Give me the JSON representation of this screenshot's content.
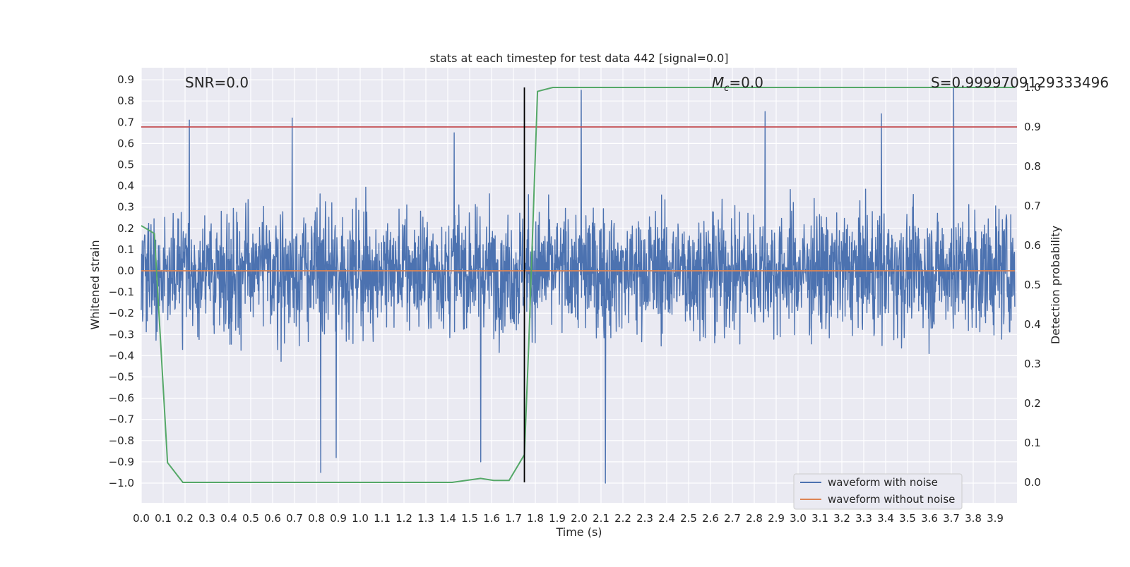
{
  "chart_data": {
    "type": "line",
    "title": "stats at each timestep for test data 442 [signal=0.0]",
    "xlabel": "Time (s)",
    "ylabel": "Whitened strain",
    "y2label": "Detection probability",
    "xlim": [
      0.0,
      3.99
    ],
    "ylim": [
      -1.09,
      0.95
    ],
    "y2lim": [
      -0.05,
      1.0
    ],
    "x_ticks": [
      "0.0",
      "0.1",
      "0.2",
      "0.3",
      "0.4",
      "0.5",
      "0.6",
      "0.7",
      "0.8",
      "0.9",
      "1.0",
      "1.1",
      "1.2",
      "1.3",
      "1.4",
      "1.5",
      "1.6",
      "1.7",
      "1.8",
      "1.9",
      "2.0",
      "2.1",
      "2.2",
      "2.3",
      "2.4",
      "2.5",
      "2.6",
      "2.7",
      "2.8",
      "2.9",
      "3.0",
      "3.1",
      "3.2",
      "3.3",
      "3.4",
      "3.5",
      "3.6",
      "3.7",
      "3.8",
      "3.9"
    ],
    "y_ticks": [
      "0.9",
      "0.8",
      "0.7",
      "0.6",
      "0.5",
      "0.4",
      "0.3",
      "0.2",
      "0.1",
      "0.0",
      "−0.1",
      "−0.2",
      "−0.3",
      "−0.4",
      "−0.5",
      "−0.6",
      "−0.7",
      "−0.8",
      "−0.9",
      "−1.0"
    ],
    "y2_ticks": [
      "1.0",
      "0.9",
      "0.8",
      "0.7",
      "0.6",
      "0.5",
      "0.4",
      "0.3",
      "0.2",
      "0.1",
      "0.0"
    ],
    "grid": true,
    "legend_position": "lower-right",
    "annotations": {
      "snr": "SNR=0.0",
      "mc_symbol": "M",
      "mc_sub": "c",
      "mc_value": "=0.0",
      "s": "S=0.9999709129333496"
    },
    "threshold": {
      "y2": 0.9,
      "color": "#c44e52"
    },
    "marker_line": {
      "x": 1.75,
      "color": "#000000"
    },
    "series": [
      {
        "name": "waveform with noise",
        "axis": "left",
        "color": "#4c72b0",
        "note_sampling": "noise trace, amplitude envelope",
        "x_range": [
          0.0,
          3.99
        ],
        "envelope": {
          "max_peak": 0.86,
          "min_peak": -1.0,
          "typical_amp": 0.45
        },
        "notable_peaks": [
          [
            0.22,
            0.71
          ],
          [
            0.69,
            0.72
          ],
          [
            1.43,
            0.65
          ],
          [
            2.01,
            0.85
          ],
          [
            2.85,
            0.75
          ],
          [
            3.38,
            0.74
          ],
          [
            3.71,
            0.86
          ],
          [
            2.12,
            -1.0
          ],
          [
            0.82,
            -0.95
          ],
          [
            0.89,
            -0.88
          ],
          [
            1.55,
            -0.9
          ]
        ]
      },
      {
        "name": "waveform without noise",
        "axis": "left",
        "color": "#dd8452",
        "x": [
          0.0,
          3.99
        ],
        "y": [
          0.0,
          0.0
        ]
      },
      {
        "name": "",
        "axis": "right",
        "color": "#55a868",
        "x": [
          0.0,
          0.06,
          0.12,
          0.19,
          0.3,
          0.5,
          1.0,
          1.42,
          1.55,
          1.61,
          1.68,
          1.75,
          1.77,
          1.81,
          1.88,
          2.0,
          3.99
        ],
        "y": [
          0.65,
          0.63,
          0.05,
          0.0,
          0.0,
          0.0,
          0.0,
          0.0,
          0.01,
          0.005,
          0.005,
          0.07,
          0.35,
          0.99,
          1.0,
          1.0,
          1.0
        ]
      }
    ]
  }
}
